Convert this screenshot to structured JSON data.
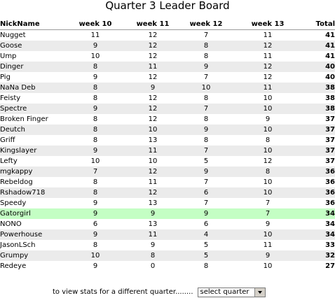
{
  "page": {
    "title": "Quarter 3 Leader Board"
  },
  "table": {
    "headers": [
      "NickName",
      "week 10",
      "week 11",
      "week 12",
      "week 13",
      "Total"
    ],
    "highlight_color": "#c4fec4",
    "rows": [
      {
        "name": "Nugget",
        "w10": "11",
        "w11": "12",
        "w12": "7",
        "w13": "11",
        "total": "41"
      },
      {
        "name": "Goose",
        "w10": "9",
        "w11": "12",
        "w12": "8",
        "w13": "12",
        "total": "41"
      },
      {
        "name": "Ump",
        "w10": "10",
        "w11": "12",
        "w12": "8",
        "w13": "11",
        "total": "41"
      },
      {
        "name": "Dinger",
        "w10": "8",
        "w11": "11",
        "w12": "9",
        "w13": "12",
        "total": "40"
      },
      {
        "name": "Pig",
        "w10": "9",
        "w11": "12",
        "w12": "7",
        "w13": "12",
        "total": "40"
      },
      {
        "name": "NaNa Deb",
        "w10": "8",
        "w11": "9",
        "w12": "10",
        "w13": "11",
        "total": "38"
      },
      {
        "name": "Feisty",
        "w10": "8",
        "w11": "12",
        "w12": "8",
        "w13": "10",
        "total": "38"
      },
      {
        "name": "Spectre",
        "w10": "9",
        "w11": "12",
        "w12": "7",
        "w13": "10",
        "total": "38"
      },
      {
        "name": "Broken Finger",
        "w10": "8",
        "w11": "12",
        "w12": "8",
        "w13": "9",
        "total": "37"
      },
      {
        "name": "Deutch",
        "w10": "8",
        "w11": "10",
        "w12": "9",
        "w13": "10",
        "total": "37"
      },
      {
        "name": "Griff",
        "w10": "8",
        "w11": "13",
        "w12": "8",
        "w13": "8",
        "total": "37"
      },
      {
        "name": "Kingslayer",
        "w10": "9",
        "w11": "11",
        "w12": "7",
        "w13": "10",
        "total": "37"
      },
      {
        "name": "Lefty",
        "w10": "10",
        "w11": "10",
        "w12": "5",
        "w13": "12",
        "total": "37"
      },
      {
        "name": "mgkappy",
        "w10": "7",
        "w11": "12",
        "w12": "9",
        "w13": "8",
        "total": "36"
      },
      {
        "name": "Rebeldog",
        "w10": "8",
        "w11": "11",
        "w12": "7",
        "w13": "10",
        "total": "36"
      },
      {
        "name": "Rshadow718",
        "w10": "8",
        "w11": "12",
        "w12": "6",
        "w13": "10",
        "total": "36"
      },
      {
        "name": "Speedy",
        "w10": "9",
        "w11": "13",
        "w12": "7",
        "w13": "7",
        "total": "36"
      },
      {
        "name": "Gatorgirl",
        "w10": "9",
        "w11": "9",
        "w12": "9",
        "w13": "7",
        "total": "34",
        "highlight": true
      },
      {
        "name": "NONO",
        "w10": "6",
        "w11": "13",
        "w12": "6",
        "w13": "9",
        "total": "34"
      },
      {
        "name": "Powerhouse",
        "w10": "9",
        "w11": "11",
        "w12": "4",
        "w13": "10",
        "total": "34"
      },
      {
        "name": "JasonLSch",
        "w10": "8",
        "w11": "9",
        "w12": "5",
        "w13": "11",
        "total": "33"
      },
      {
        "name": "Grumpy",
        "w10": "10",
        "w11": "8",
        "w12": "5",
        "w13": "9",
        "total": "32"
      },
      {
        "name": "Redeye",
        "w10": "9",
        "w11": "0",
        "w12": "8",
        "w13": "10",
        "total": "27"
      }
    ]
  },
  "footer": {
    "prompt": "to view stats for a different quarter........",
    "select": {
      "selected": "select quarter"
    }
  }
}
